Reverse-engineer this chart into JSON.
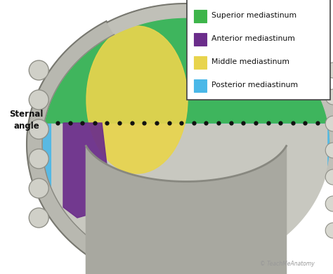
{
  "bg_color": "#ffffff",
  "legend_items": [
    {
      "label": "Superior mediastinum",
      "color": "#3db54a"
    },
    {
      "label": "Anterior mediastinum",
      "color": "#6b2d8b"
    },
    {
      "label": "Middle mediastinum",
      "color": "#e8d44d"
    },
    {
      "label": "Posterior mediastinum",
      "color": "#4ab8e8"
    }
  ],
  "sternal_angle_text": "Sternal\nangle",
  "watermark": "TeachMeAnatomy",
  "superior_green": "#3db54a",
  "anterior_purple": "#6b2d8b",
  "middle_yellow": "#e8d44d",
  "posterior_blue": "#4ab8e8",
  "thorax_fill": "#c8c8c0",
  "thorax_edge": "#888880"
}
